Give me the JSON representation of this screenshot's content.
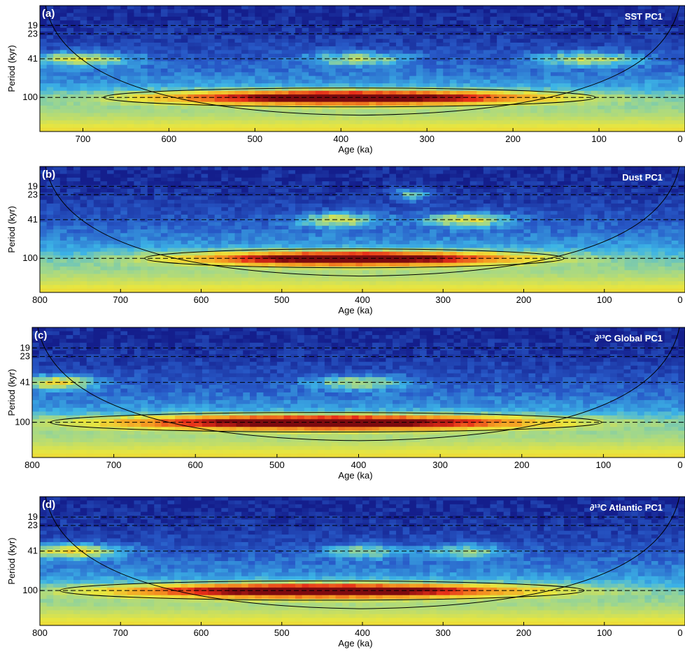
{
  "chart_data": [
    {
      "type": "heatmap",
      "panel_letter": "(a)",
      "series_title": "SST PC1",
      "xlabel": "Age (ka)",
      "ylabel": "Period (kyr)",
      "xlim": [
        750,
        0
      ],
      "x_ticks": [
        700,
        600,
        500,
        400,
        300,
        200,
        100,
        0
      ],
      "y_ticks": [
        19,
        23,
        41,
        100
      ],
      "dashed_periods": [
        19,
        23,
        41,
        100
      ],
      "cone_of_influence_min_age": 378,
      "bands": [
        {
          "period": 100,
          "peak_age": 390,
          "width_kyr": 220,
          "strength": 1.0
        },
        {
          "period": 41,
          "peak_age": 700,
          "width_kyr": 60,
          "strength": 0.55
        },
        {
          "period": 41,
          "peak_age": 380,
          "width_kyr": 60,
          "strength": 0.45
        },
        {
          "period": 41,
          "peak_age": 110,
          "width_kyr": 60,
          "strength": 0.5
        }
      ]
    },
    {
      "type": "heatmap",
      "panel_letter": "(b)",
      "series_title": "Dust PC1",
      "xlabel": "Age (ka)",
      "ylabel": "Period (kyr)",
      "xlim": [
        800,
        0
      ],
      "x_ticks": [
        800,
        700,
        600,
        500,
        400,
        300,
        200,
        100,
        0
      ],
      "y_ticks": [
        19,
        23,
        41,
        100
      ],
      "dashed_periods": [
        19,
        23,
        41,
        100
      ],
      "cone_of_influence_min_age": 400,
      "bands": [
        {
          "period": 100,
          "peak_age": 410,
          "width_kyr": 200,
          "strength": 1.0
        },
        {
          "period": 41,
          "peak_age": 430,
          "width_kyr": 50,
          "strength": 0.55
        },
        {
          "period": 41,
          "peak_age": 270,
          "width_kyr": 55,
          "strength": 0.55
        },
        {
          "period": 23,
          "peak_age": 340,
          "width_kyr": 25,
          "strength": 0.45
        }
      ]
    },
    {
      "type": "heatmap",
      "panel_letter": "(c)",
      "series_title": "∂¹³C Global PC1",
      "xlabel": "Age (ka)",
      "ylabel": "Period (kyr)",
      "xlim": [
        800,
        0
      ],
      "x_ticks": [
        800,
        700,
        600,
        500,
        400,
        300,
        200,
        100,
        0
      ],
      "y_ticks": [
        19,
        23,
        41,
        100
      ],
      "dashed_periods": [
        19,
        23,
        41,
        100
      ],
      "cone_of_influence_min_age": 400,
      "bands": [
        {
          "period": 100,
          "peak_age": 440,
          "width_kyr": 260,
          "strength": 1.0
        },
        {
          "period": 41,
          "peak_age": 770,
          "width_kyr": 50,
          "strength": 0.6
        },
        {
          "period": 41,
          "peak_age": 400,
          "width_kyr": 60,
          "strength": 0.45
        }
      ]
    },
    {
      "type": "heatmap",
      "panel_letter": "(d)",
      "series_title": "∂¹³C Atlantic PC1",
      "xlabel": "Age (ka)",
      "ylabel": "Period (kyr)",
      "xlim": [
        800,
        0
      ],
      "x_ticks": [
        800,
        700,
        600,
        500,
        400,
        300,
        200,
        100,
        0
      ],
      "y_ticks": [
        19,
        23,
        41,
        100
      ],
      "dashed_periods": [
        19,
        23,
        41,
        100
      ],
      "cone_of_influence_min_age": 400,
      "bands": [
        {
          "period": 100,
          "peak_age": 450,
          "width_kyr": 250,
          "strength": 1.0
        },
        {
          "period": 41,
          "peak_age": 760,
          "width_kyr": 60,
          "strength": 0.65
        },
        {
          "period": 41,
          "peak_age": 400,
          "width_kyr": 50,
          "strength": 0.4
        },
        {
          "period": 41,
          "peak_age": 270,
          "width_kyr": 50,
          "strength": 0.4
        }
      ]
    }
  ]
}
